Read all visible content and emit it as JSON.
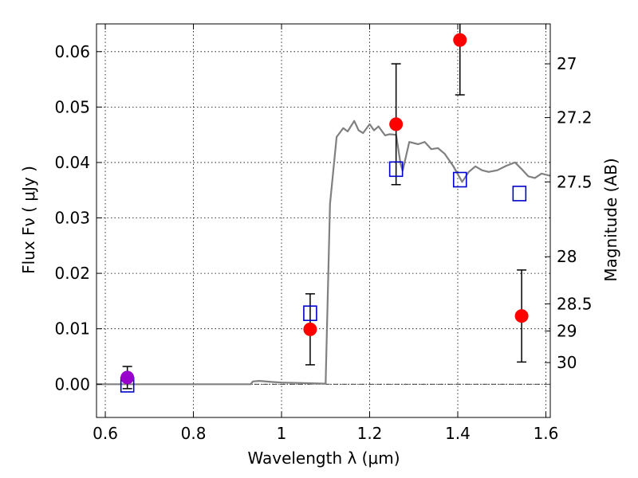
{
  "chart_data": {
    "type": "scatter",
    "xlabel": "Wavelength  λ (μm)",
    "ylabel": "Flux  Fν  ( μJy )",
    "ylabel_right": "Magnitude (AB)",
    "xlim": [
      0.58,
      1.61
    ],
    "ylim": [
      -0.006,
      0.065
    ],
    "x_ticks": [
      0.6,
      0.8,
      1.0,
      1.2,
      1.4,
      1.6
    ],
    "x_tick_labels": [
      "0.6",
      "0.8",
      "1",
      "1.2",
      "1.4",
      "1.6"
    ],
    "y_ticks": [
      0.0,
      0.01,
      0.02,
      0.03,
      0.04,
      0.05,
      0.06
    ],
    "y_tick_labels": [
      "0.00",
      "0.01",
      "0.02",
      "0.03",
      "0.04",
      "0.05",
      "0.06"
    ],
    "right_ticks": [
      {
        "label": "27",
        "flux": 0.0578
      },
      {
        "label": "27.2",
        "flux": 0.0481
      },
      {
        "label": "27.5",
        "flux": 0.0365
      },
      {
        "label": "28",
        "flux": 0.023
      },
      {
        "label": "28.5",
        "flux": 0.0145
      },
      {
        "label": "29",
        "flux": 0.0096
      },
      {
        "label": "30",
        "flux": 0.0039
      }
    ],
    "grid": true,
    "zero_line": true,
    "colors": {
      "model": "#808080",
      "observed": "#ff0000",
      "upper_point": "#9900cc",
      "synthetic": "#0000cc",
      "errorbar": "#000000"
    },
    "series": [
      {
        "kind": "line",
        "x": [
          0.58,
          0.7,
          0.8,
          0.9,
          0.93,
          0.935,
          0.95,
          0.98,
          1.0,
          1.05,
          1.1,
          1.11,
          1.125,
          1.14,
          1.15,
          1.165,
          1.175,
          1.185,
          1.2,
          1.21,
          1.22,
          1.235,
          1.245,
          1.26,
          1.27,
          1.275,
          1.29,
          1.31,
          1.325,
          1.34,
          1.355,
          1.37,
          1.39,
          1.41,
          1.425,
          1.44,
          1.455,
          1.47,
          1.49,
          1.51,
          1.53,
          1.545,
          1.56,
          1.575,
          1.59,
          1.61
        ],
        "y": [
          0.0,
          0.0,
          0.0,
          0.0,
          0.0,
          0.0005,
          0.0006,
          0.0004,
          0.0003,
          0.0002,
          0.0001,
          0.0325,
          0.0446,
          0.0462,
          0.0456,
          0.0475,
          0.0458,
          0.0453,
          0.0469,
          0.0458,
          0.0465,
          0.0449,
          0.0451,
          0.045,
          0.0398,
          0.0385,
          0.0437,
          0.0433,
          0.0437,
          0.0424,
          0.0426,
          0.0416,
          0.0393,
          0.0365,
          0.0383,
          0.0393,
          0.0386,
          0.0383,
          0.0386,
          0.0394,
          0.04,
          0.0388,
          0.0375,
          0.0372,
          0.038,
          0.0376
        ]
      },
      {
        "kind": "errorbar-points",
        "color": "#ff0000",
        "x": [
          1.065,
          1.26,
          1.405,
          1.545
        ],
        "y": [
          0.0099,
          0.0469,
          0.0621,
          0.0123
        ],
        "yerr": [
          0.0064,
          0.0109,
          0.0099,
          0.0083
        ]
      },
      {
        "kind": "errorbar-points",
        "color": "#9900cc",
        "x": [
          0.65
        ],
        "y": [
          0.0012
        ],
        "yerr": [
          0.002
        ]
      },
      {
        "kind": "squares",
        "color": "#0000cc",
        "x": [
          0.65,
          1.065,
          1.26,
          1.405,
          1.54
        ],
        "y": [
          -0.0001,
          0.0128,
          0.0388,
          0.0369,
          0.0344
        ]
      }
    ]
  }
}
